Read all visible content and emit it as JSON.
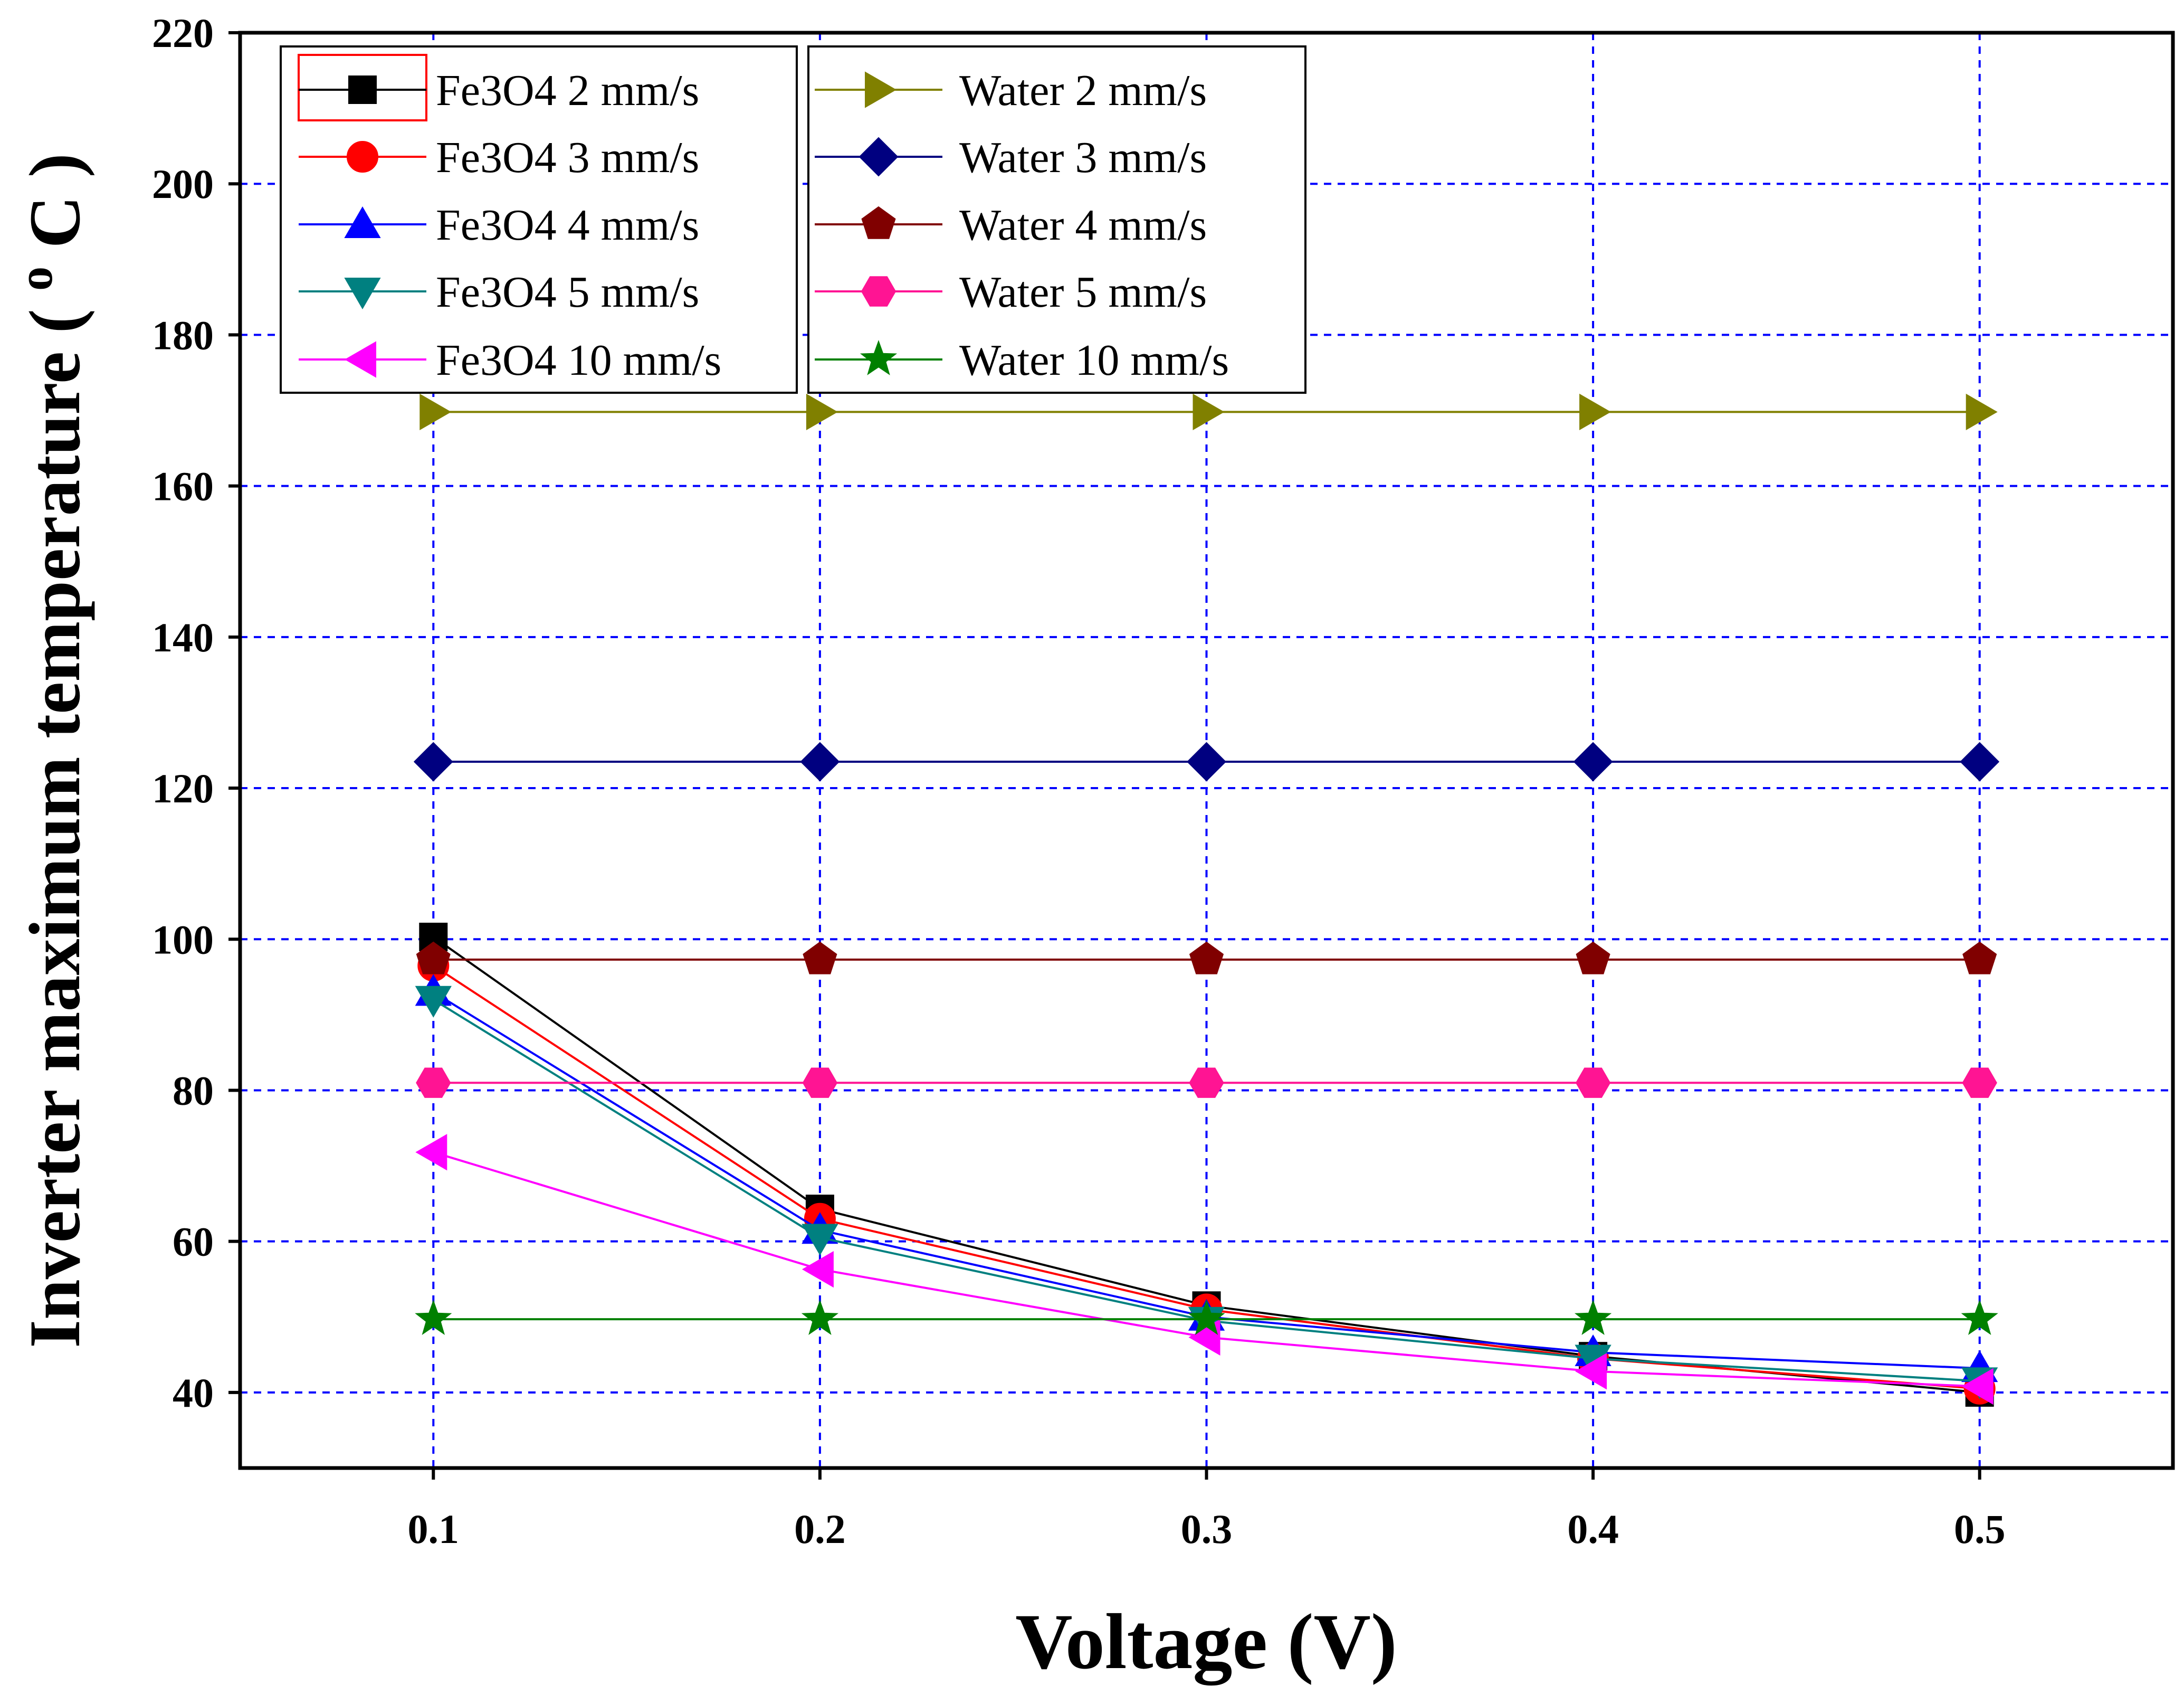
{
  "chart_data": {
    "type": "line",
    "title": "",
    "xlabel": "Voltage (V)",
    "ylabel": "Inverter maximum temperature",
    "ylabel_unit_base": "C",
    "ylabel_unit_sup": "o",
    "xlim": [
      0.05,
      0.55
    ],
    "ylim": [
      30,
      220
    ],
    "x": [
      0.1,
      0.2,
      0.3,
      0.4,
      0.5
    ],
    "x_tick_labels": [
      "0.1",
      "0.2",
      "0.3",
      "0.4",
      "0.5"
    ],
    "y_ticks": [
      40,
      60,
      80,
      100,
      120,
      140,
      160,
      180,
      200,
      220
    ],
    "y_tick_labels": [
      "40",
      "60",
      "80",
      "100",
      "120",
      "140",
      "160",
      "180",
      "200",
      "220"
    ],
    "grid": true,
    "legend_position": "top-left",
    "series": [
      {
        "name": "Fe3O4 2 mm/s",
        "marker": "square",
        "color": "#000000",
        "values": [
          100.3,
          64.3,
          51.5,
          44.8,
          40.0
        ]
      },
      {
        "name": "Fe3O4 3 mm/s",
        "marker": "circle",
        "color": "#ff0000",
        "values": [
          96.5,
          63.0,
          51.0,
          44.5,
          40.5
        ]
      },
      {
        "name": "Fe3O4 4 mm/s",
        "marker": "triangle-up",
        "color": "#0000ff",
        "values": [
          93.0,
          61.5,
          50.0,
          45.3,
          43.2
        ]
      },
      {
        "name": "Fe3O4 5 mm/s",
        "marker": "triangle-down",
        "color": "#008080",
        "values": [
          92.0,
          60.5,
          49.5,
          44.5,
          41.5
        ]
      },
      {
        "name": "Fe3O4 10 mm/s",
        "marker": "triangle-left",
        "color": "#ff00ff",
        "values": [
          71.8,
          56.3,
          47.3,
          42.8,
          40.8
        ]
      },
      {
        "name": "Water 2 mm/s",
        "marker": "triangle-right",
        "color": "#808000",
        "values": [
          169.8,
          169.8,
          169.8,
          169.8,
          169.8
        ]
      },
      {
        "name": "Water 3 mm/s",
        "marker": "diamond",
        "color": "#000080",
        "values": [
          123.5,
          123.5,
          123.5,
          123.5,
          123.5
        ]
      },
      {
        "name": "Water 4 mm/s",
        "marker": "pentagon",
        "color": "#800000",
        "values": [
          97.3,
          97.3,
          97.3,
          97.3,
          97.3
        ]
      },
      {
        "name": "Water 5 mm/s",
        "marker": "hexagon",
        "color": "#ff1493",
        "values": [
          81.0,
          81.0,
          81.0,
          81.0,
          81.0
        ]
      },
      {
        "name": "Water 10 mm/s",
        "marker": "star",
        "color": "#008000",
        "values": [
          49.7,
          49.7,
          49.7,
          49.7,
          49.7
        ]
      }
    ]
  }
}
